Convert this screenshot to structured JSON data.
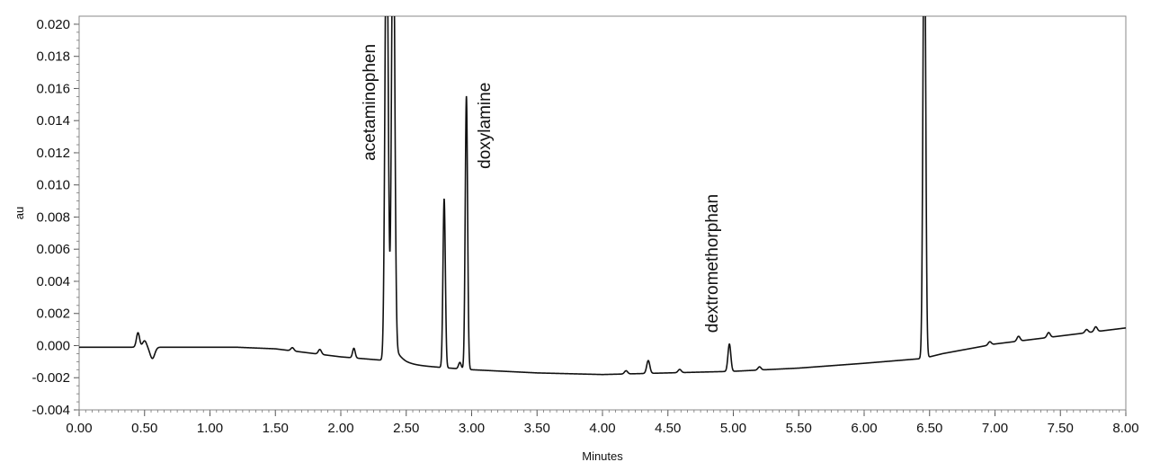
{
  "chart_data": {
    "type": "line",
    "title": "",
    "xlabel": "Minutes",
    "ylabel": "au",
    "xlim": [
      0,
      8
    ],
    "ylim": [
      -0.004,
      0.0205
    ],
    "grid": false,
    "legend": "none",
    "line_color": "#111111",
    "x_ticks": [
      "0.00",
      "0.50",
      "1.00",
      "1.50",
      "2.00",
      "2.50",
      "3.00",
      "3.50",
      "4.00",
      "4.50",
      "5.00",
      "5.50",
      "6.00",
      "6.50",
      "7.00",
      "7.50",
      "8.00"
    ],
    "y_ticks": [
      "0.020",
      "0.018",
      "0.016",
      "0.014",
      "0.012",
      "0.010",
      "0.008",
      "0.006",
      "0.004",
      "0.002",
      "0.000",
      "-0.002",
      "-0.004"
    ],
    "baseline": {
      "x": [
        0.0,
        1.2,
        1.5,
        2.0,
        2.3,
        2.5,
        3.0,
        3.5,
        4.0,
        4.5,
        5.0,
        5.5,
        6.0,
        6.45,
        6.6,
        7.0,
        7.5,
        8.0
      ],
      "y": [
        -0.0001,
        -0.0001,
        -0.0002,
        -0.0007,
        -0.0009,
        -0.0012,
        -0.0015,
        -0.0017,
        -0.0018,
        -0.0017,
        -0.0016,
        -0.0014,
        -0.0011,
        -0.0008,
        -0.0005,
        0.0001,
        0.0006,
        0.0011
      ]
    },
    "peaks": [
      {
        "x": 0.45,
        "height": 0.0009,
        "width": 0.012
      },
      {
        "x": 0.5,
        "height": 0.0004,
        "width": 0.015
      },
      {
        "x": 0.56,
        "height": -0.0007,
        "width": 0.018
      },
      {
        "x": 1.63,
        "height": 0.0002,
        "width": 0.012
      },
      {
        "x": 1.84,
        "height": 0.0003,
        "width": 0.012
      },
      {
        "x": 2.1,
        "height": 0.0006,
        "width": 0.01
      },
      {
        "x": 2.35,
        "height": 0.03,
        "width": 0.012
      },
      {
        "x": 2.4,
        "height": 0.03,
        "width": 0.012,
        "tail": 0.06
      },
      {
        "x": 2.79,
        "height": 0.0105,
        "width": 0.009
      },
      {
        "x": 2.91,
        "height": 0.0004,
        "width": 0.01
      },
      {
        "x": 2.96,
        "height": 0.017,
        "width": 0.009
      },
      {
        "x": 4.18,
        "height": 0.0002,
        "width": 0.012
      },
      {
        "x": 4.35,
        "height": 0.0008,
        "width": 0.012
      },
      {
        "x": 4.59,
        "height": 0.0002,
        "width": 0.012
      },
      {
        "x": 4.97,
        "height": 0.0017,
        "width": 0.011
      },
      {
        "x": 5.2,
        "height": 0.0002,
        "width": 0.012
      },
      {
        "x": 6.46,
        "height": 0.03,
        "width": 0.01
      },
      {
        "x": 6.96,
        "height": 0.0002,
        "width": 0.012
      },
      {
        "x": 7.18,
        "height": 0.0003,
        "width": 0.012
      },
      {
        "x": 7.41,
        "height": 0.0003,
        "width": 0.012
      },
      {
        "x": 7.7,
        "height": 0.0002,
        "width": 0.012
      },
      {
        "x": 7.77,
        "height": 0.0003,
        "width": 0.012
      }
    ],
    "annotations": [
      {
        "text": "acetaminophen",
        "x": 2.26,
        "y": 0.0115
      },
      {
        "text": "doxylamine",
        "x": 3.14,
        "y": 0.011
      },
      {
        "text": "dextromethorphan",
        "x": 4.88,
        "y": 0.0008
      }
    ]
  }
}
